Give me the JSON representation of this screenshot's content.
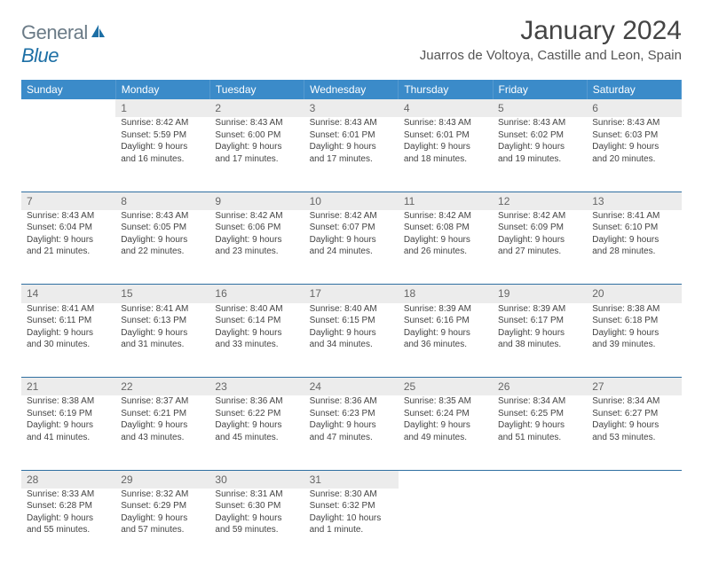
{
  "logo": {
    "text_gray": "General",
    "text_blue": "Blue"
  },
  "title": "January 2024",
  "location": "Juarros de Voltoya, Castille and Leon, Spain",
  "colors": {
    "header_bg": "#3b8bc9",
    "header_text": "#ffffff",
    "daynum_bg": "#ececec",
    "daynum_text": "#666666",
    "body_text": "#444444",
    "rule": "#2f6fa1",
    "logo_gray": "#6b7b87",
    "logo_blue": "#1d6fa5"
  },
  "weekdays": [
    "Sunday",
    "Monday",
    "Tuesday",
    "Wednesday",
    "Thursday",
    "Friday",
    "Saturday"
  ],
  "weeks": [
    {
      "nums": [
        "",
        "1",
        "2",
        "3",
        "4",
        "5",
        "6"
      ],
      "cells": [
        null,
        {
          "sunrise": "Sunrise: 8:42 AM",
          "sunset": "Sunset: 5:59 PM",
          "day1": "Daylight: 9 hours",
          "day2": "and 16 minutes."
        },
        {
          "sunrise": "Sunrise: 8:43 AM",
          "sunset": "Sunset: 6:00 PM",
          "day1": "Daylight: 9 hours",
          "day2": "and 17 minutes."
        },
        {
          "sunrise": "Sunrise: 8:43 AM",
          "sunset": "Sunset: 6:01 PM",
          "day1": "Daylight: 9 hours",
          "day2": "and 17 minutes."
        },
        {
          "sunrise": "Sunrise: 8:43 AM",
          "sunset": "Sunset: 6:01 PM",
          "day1": "Daylight: 9 hours",
          "day2": "and 18 minutes."
        },
        {
          "sunrise": "Sunrise: 8:43 AM",
          "sunset": "Sunset: 6:02 PM",
          "day1": "Daylight: 9 hours",
          "day2": "and 19 minutes."
        },
        {
          "sunrise": "Sunrise: 8:43 AM",
          "sunset": "Sunset: 6:03 PM",
          "day1": "Daylight: 9 hours",
          "day2": "and 20 minutes."
        }
      ]
    },
    {
      "nums": [
        "7",
        "8",
        "9",
        "10",
        "11",
        "12",
        "13"
      ],
      "cells": [
        {
          "sunrise": "Sunrise: 8:43 AM",
          "sunset": "Sunset: 6:04 PM",
          "day1": "Daylight: 9 hours",
          "day2": "and 21 minutes."
        },
        {
          "sunrise": "Sunrise: 8:43 AM",
          "sunset": "Sunset: 6:05 PM",
          "day1": "Daylight: 9 hours",
          "day2": "and 22 minutes."
        },
        {
          "sunrise": "Sunrise: 8:42 AM",
          "sunset": "Sunset: 6:06 PM",
          "day1": "Daylight: 9 hours",
          "day2": "and 23 minutes."
        },
        {
          "sunrise": "Sunrise: 8:42 AM",
          "sunset": "Sunset: 6:07 PM",
          "day1": "Daylight: 9 hours",
          "day2": "and 24 minutes."
        },
        {
          "sunrise": "Sunrise: 8:42 AM",
          "sunset": "Sunset: 6:08 PM",
          "day1": "Daylight: 9 hours",
          "day2": "and 26 minutes."
        },
        {
          "sunrise": "Sunrise: 8:42 AM",
          "sunset": "Sunset: 6:09 PM",
          "day1": "Daylight: 9 hours",
          "day2": "and 27 minutes."
        },
        {
          "sunrise": "Sunrise: 8:41 AM",
          "sunset": "Sunset: 6:10 PM",
          "day1": "Daylight: 9 hours",
          "day2": "and 28 minutes."
        }
      ]
    },
    {
      "nums": [
        "14",
        "15",
        "16",
        "17",
        "18",
        "19",
        "20"
      ],
      "cells": [
        {
          "sunrise": "Sunrise: 8:41 AM",
          "sunset": "Sunset: 6:11 PM",
          "day1": "Daylight: 9 hours",
          "day2": "and 30 minutes."
        },
        {
          "sunrise": "Sunrise: 8:41 AM",
          "sunset": "Sunset: 6:13 PM",
          "day1": "Daylight: 9 hours",
          "day2": "and 31 minutes."
        },
        {
          "sunrise": "Sunrise: 8:40 AM",
          "sunset": "Sunset: 6:14 PM",
          "day1": "Daylight: 9 hours",
          "day2": "and 33 minutes."
        },
        {
          "sunrise": "Sunrise: 8:40 AM",
          "sunset": "Sunset: 6:15 PM",
          "day1": "Daylight: 9 hours",
          "day2": "and 34 minutes."
        },
        {
          "sunrise": "Sunrise: 8:39 AM",
          "sunset": "Sunset: 6:16 PM",
          "day1": "Daylight: 9 hours",
          "day2": "and 36 minutes."
        },
        {
          "sunrise": "Sunrise: 8:39 AM",
          "sunset": "Sunset: 6:17 PM",
          "day1": "Daylight: 9 hours",
          "day2": "and 38 minutes."
        },
        {
          "sunrise": "Sunrise: 8:38 AM",
          "sunset": "Sunset: 6:18 PM",
          "day1": "Daylight: 9 hours",
          "day2": "and 39 minutes."
        }
      ]
    },
    {
      "nums": [
        "21",
        "22",
        "23",
        "24",
        "25",
        "26",
        "27"
      ],
      "cells": [
        {
          "sunrise": "Sunrise: 8:38 AM",
          "sunset": "Sunset: 6:19 PM",
          "day1": "Daylight: 9 hours",
          "day2": "and 41 minutes."
        },
        {
          "sunrise": "Sunrise: 8:37 AM",
          "sunset": "Sunset: 6:21 PM",
          "day1": "Daylight: 9 hours",
          "day2": "and 43 minutes."
        },
        {
          "sunrise": "Sunrise: 8:36 AM",
          "sunset": "Sunset: 6:22 PM",
          "day1": "Daylight: 9 hours",
          "day2": "and 45 minutes."
        },
        {
          "sunrise": "Sunrise: 8:36 AM",
          "sunset": "Sunset: 6:23 PM",
          "day1": "Daylight: 9 hours",
          "day2": "and 47 minutes."
        },
        {
          "sunrise": "Sunrise: 8:35 AM",
          "sunset": "Sunset: 6:24 PM",
          "day1": "Daylight: 9 hours",
          "day2": "and 49 minutes."
        },
        {
          "sunrise": "Sunrise: 8:34 AM",
          "sunset": "Sunset: 6:25 PM",
          "day1": "Daylight: 9 hours",
          "day2": "and 51 minutes."
        },
        {
          "sunrise": "Sunrise: 8:34 AM",
          "sunset": "Sunset: 6:27 PM",
          "day1": "Daylight: 9 hours",
          "day2": "and 53 minutes."
        }
      ]
    },
    {
      "nums": [
        "28",
        "29",
        "30",
        "31",
        "",
        "",
        ""
      ],
      "cells": [
        {
          "sunrise": "Sunrise: 8:33 AM",
          "sunset": "Sunset: 6:28 PM",
          "day1": "Daylight: 9 hours",
          "day2": "and 55 minutes."
        },
        {
          "sunrise": "Sunrise: 8:32 AM",
          "sunset": "Sunset: 6:29 PM",
          "day1": "Daylight: 9 hours",
          "day2": "and 57 minutes."
        },
        {
          "sunrise": "Sunrise: 8:31 AM",
          "sunset": "Sunset: 6:30 PM",
          "day1": "Daylight: 9 hours",
          "day2": "and 59 minutes."
        },
        {
          "sunrise": "Sunrise: 8:30 AM",
          "sunset": "Sunset: 6:32 PM",
          "day1": "Daylight: 10 hours",
          "day2": "and 1 minute."
        },
        null,
        null,
        null
      ]
    }
  ]
}
